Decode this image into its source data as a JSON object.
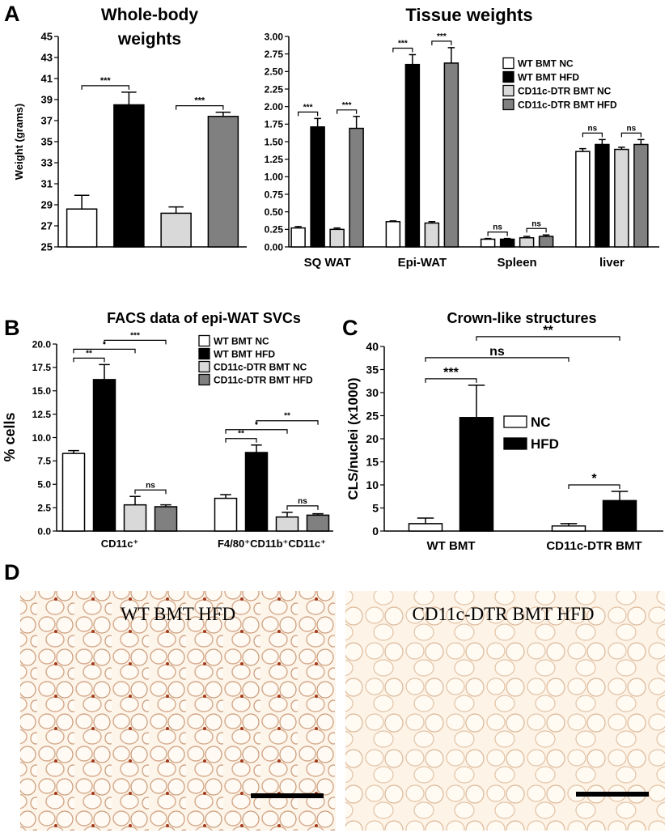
{
  "panel_labels": [
    "A",
    "B",
    "C",
    "D"
  ],
  "chart_data": [
    {
      "type": "bar",
      "title": "Whole-body weights",
      "y_label": "Weight (grams)",
      "ylim": [
        25,
        45
      ],
      "yticks": [
        25,
        27,
        29,
        31,
        33,
        35,
        37,
        39,
        41,
        43,
        45
      ],
      "categories": [
        null,
        null,
        null,
        null
      ],
      "values": [
        28.6,
        38.5,
        28.2,
        37.4
      ],
      "errors": [
        1.3,
        1.2,
        0.6,
        0.4
      ],
      "colors": [
        "#ffffff",
        "#000000",
        "#d9d9d9",
        "#808080"
      ],
      "annotations": [
        {
          "text": "***",
          "between": [
            0,
            1
          ]
        },
        {
          "text": "***",
          "between": [
            2,
            3
          ]
        }
      ]
    },
    {
      "type": "bar",
      "title": "Tissue weights",
      "ylim": [
        0,
        3
      ],
      "yticks": [
        {
          "value": 0,
          "label": "0.00"
        },
        0.25,
        {
          "value": 0.5,
          "label": "0.50"
        },
        0.75,
        {
          "value": 1,
          "label": "1.00"
        },
        1.25,
        {
          "value": 1.5,
          "label": "1.50"
        },
        1.75,
        {
          "value": 2,
          "label": "2.00"
        },
        2.25,
        {
          "value": 2.5,
          "label": "2.50"
        },
        2.75,
        {
          "value": 3,
          "label": "3.00"
        }
      ],
      "categories": [
        "SQ WAT",
        "Epi-WAT",
        "Spleen",
        "liver"
      ],
      "series": [
        {
          "name": "WT BMT NC",
          "color": "#ffffff",
          "values": [
            0.27,
            0.36,
            0.11,
            1.36
          ],
          "errors": [
            0.02,
            0.01,
            0.01,
            0.04
          ]
        },
        {
          "name": "WT BMT HFD",
          "color": "#000000",
          "values": [
            1.71,
            2.6,
            0.11,
            1.46
          ],
          "errors": [
            0.12,
            0.14,
            0.01,
            0.07
          ]
        },
        {
          "name": "CD11c-DTR BMT NC",
          "color": "#d9d9d9",
          "values": [
            0.25,
            0.34,
            0.13,
            1.39
          ],
          "errors": [
            0.02,
            0.02,
            0.02,
            0.03
          ]
        },
        {
          "name": "CD11c-DTR BMT HFD",
          "color": "#808080",
          "values": [
            1.69,
            2.62,
            0.15,
            1.46
          ],
          "errors": [
            0.17,
            0.22,
            0.02,
            0.07
          ]
        }
      ],
      "annotations": [
        {
          "text": "***",
          "between": [
            0,
            1
          ]
        },
        {
          "text": "***",
          "between": [
            2,
            3
          ]
        },
        {
          "text": "***",
          "between": [
            4,
            5
          ]
        },
        {
          "text": "***",
          "between": [
            6,
            7
          ]
        },
        {
          "text": "ns",
          "between": [
            8,
            9
          ]
        },
        {
          "text": "ns",
          "between": [
            10,
            11
          ]
        },
        {
          "text": "ns",
          "between": [
            12,
            13
          ]
        },
        {
          "text": "ns",
          "between": [
            14,
            15
          ]
        }
      ]
    },
    {
      "type": "bar",
      "title": "FACS data of epi-WAT SVCs",
      "y_label": "% cells",
      "ylim": [
        0,
        20
      ],
      "yticks": [
        {
          "value": 0,
          "label": "0.0"
        },
        2.5,
        {
          "value": 5,
          "label": "5.0"
        },
        7.5,
        {
          "value": 10,
          "label": "10.0"
        },
        12.5,
        {
          "value": 15,
          "label": "15.0"
        },
        17.5,
        {
          "value": 20,
          "label": "20.0"
        }
      ],
      "categories": [
        "CD11c⁺",
        "F4/80⁺CD11b⁺CD11c⁺"
      ],
      "series": [
        {
          "name": "WT BMT NC",
          "color": "#ffffff",
          "values": [
            8.3,
            3.5
          ],
          "errors": [
            0.3,
            0.4
          ]
        },
        {
          "name": "WT BMT HFD",
          "color": "#000000",
          "values": [
            16.2,
            8.4
          ],
          "errors": [
            1.6,
            0.8
          ]
        },
        {
          "name": "CD11c-DTR BMT NC",
          "color": "#d9d9d9",
          "values": [
            2.8,
            1.5
          ],
          "errors": [
            0.9,
            0.5
          ]
        },
        {
          "name": "CD11c-DTR BMT HFD",
          "color": "#808080",
          "values": [
            2.6,
            1.7
          ],
          "errors": [
            0.2,
            0.15
          ]
        }
      ],
      "annotations": [
        {
          "text": "**",
          "between": [
            0,
            1
          ]
        },
        {
          "text": "ns",
          "between": [
            2,
            3
          ]
        },
        {
          "text": "*",
          "between": [
            0,
            2
          ]
        },
        {
          "text": "***",
          "between": [
            1,
            3
          ]
        },
        {
          "text": "**",
          "between": [
            4,
            5
          ]
        },
        {
          "text": "ns",
          "between": [
            6,
            7
          ]
        },
        {
          "text": "*",
          "between": [
            4,
            6
          ]
        },
        {
          "text": "**",
          "between": [
            5,
            7
          ]
        }
      ]
    },
    {
      "type": "bar",
      "title": "Crown-like structures",
      "y_label": "CLS/nuclei (x1000)",
      "ylim": [
        0,
        40
      ],
      "yticks": [
        0,
        5,
        10,
        15,
        20,
        25,
        30,
        35,
        40
      ],
      "categories": [
        "WT BMT",
        "CD11c-DTR BMT"
      ],
      "series": [
        {
          "name": "NC",
          "color": "#ffffff",
          "values": [
            1.6,
            1.1
          ],
          "errors": [
            1.2,
            0.5
          ]
        },
        {
          "name": "HFD",
          "color": "#000000",
          "values": [
            24.6,
            6.6
          ],
          "errors": [
            7,
            2
          ]
        }
      ],
      "annotations": [
        {
          "text": "***",
          "between": [
            0,
            1
          ]
        },
        {
          "text": "*",
          "between": [
            2,
            3
          ]
        },
        {
          "text": "ns",
          "between": [
            0,
            2
          ]
        },
        {
          "text": "**",
          "between": [
            1,
            3
          ]
        }
      ]
    }
  ],
  "images": [
    {
      "caption": "WT BMT HFD"
    },
    {
      "caption": "CD11c-DTR BMT HFD"
    }
  ]
}
